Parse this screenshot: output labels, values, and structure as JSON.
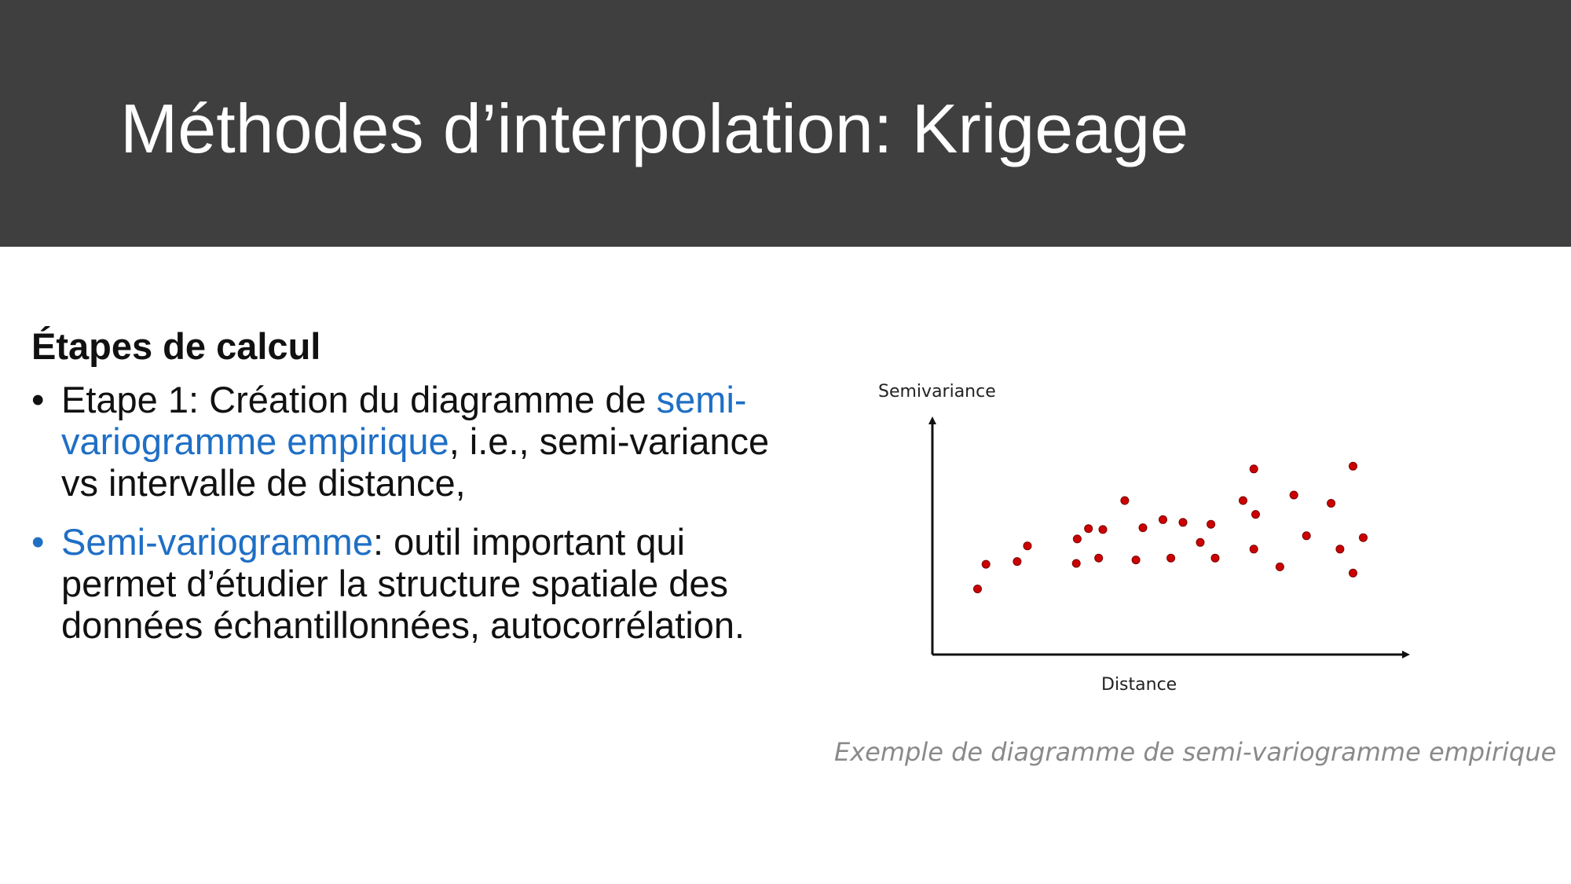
{
  "slide": {
    "title": "Méthodes d’interpolation: Krigeage"
  },
  "content": {
    "heading": "Étapes de calcul",
    "bullets": [
      {
        "marker": "•",
        "parts": [
          {
            "text": "Etape 1: Création du diagramme de ",
            "color": "#111111"
          },
          {
            "text": "semi-variogramme empirique",
            "color": "#1f6fc5"
          },
          {
            "text": ", i.e., semi-variance vs intervalle de distance,",
            "color": "#111111"
          }
        ]
      },
      {
        "marker": "•",
        "marker_color": "#1f6fc5",
        "parts": [
          {
            "text": "Semi-variogramme",
            "color": "#1f6fc5"
          },
          {
            "text": ": outil important qui permet d’étudier la structure spatiale des données échantillonnées, autocorrélation.",
            "color": "#111111"
          }
        ]
      }
    ]
  },
  "chart_data": {
    "type": "scatter",
    "ylabel": "Semivariance",
    "xlabel": "Distance",
    "ticks_shown": false,
    "grid": false,
    "point_color": "#cc0000",
    "xlim": [
      0,
      1
    ],
    "ylim": [
      0,
      1
    ],
    "points": [
      {
        "x": 0.097,
        "y": 0.285
      },
      {
        "x": 0.115,
        "y": 0.392
      },
      {
        "x": 0.182,
        "y": 0.404
      },
      {
        "x": 0.204,
        "y": 0.472
      },
      {
        "x": 0.309,
        "y": 0.396
      },
      {
        "x": 0.311,
        "y": 0.502
      },
      {
        "x": 0.335,
        "y": 0.547
      },
      {
        "x": 0.357,
        "y": 0.419
      },
      {
        "x": 0.366,
        "y": 0.543
      },
      {
        "x": 0.413,
        "y": 0.669
      },
      {
        "x": 0.437,
        "y": 0.411
      },
      {
        "x": 0.452,
        "y": 0.551
      },
      {
        "x": 0.495,
        "y": 0.586
      },
      {
        "x": 0.512,
        "y": 0.419
      },
      {
        "x": 0.538,
        "y": 0.574
      },
      {
        "x": 0.575,
        "y": 0.487
      },
      {
        "x": 0.598,
        "y": 0.566
      },
      {
        "x": 0.607,
        "y": 0.419
      },
      {
        "x": 0.667,
        "y": 0.669
      },
      {
        "x": 0.69,
        "y": 0.806
      },
      {
        "x": 0.694,
        "y": 0.609
      },
      {
        "x": 0.69,
        "y": 0.458
      },
      {
        "x": 0.746,
        "y": 0.381
      },
      {
        "x": 0.776,
        "y": 0.693
      },
      {
        "x": 0.803,
        "y": 0.516
      },
      {
        "x": 0.856,
        "y": 0.657
      },
      {
        "x": 0.875,
        "y": 0.458
      },
      {
        "x": 0.903,
        "y": 0.818
      },
      {
        "x": 0.903,
        "y": 0.354
      },
      {
        "x": 0.925,
        "y": 0.508
      }
    ]
  },
  "caption": "Exemple de diagramme de semi-variogramme empirique"
}
